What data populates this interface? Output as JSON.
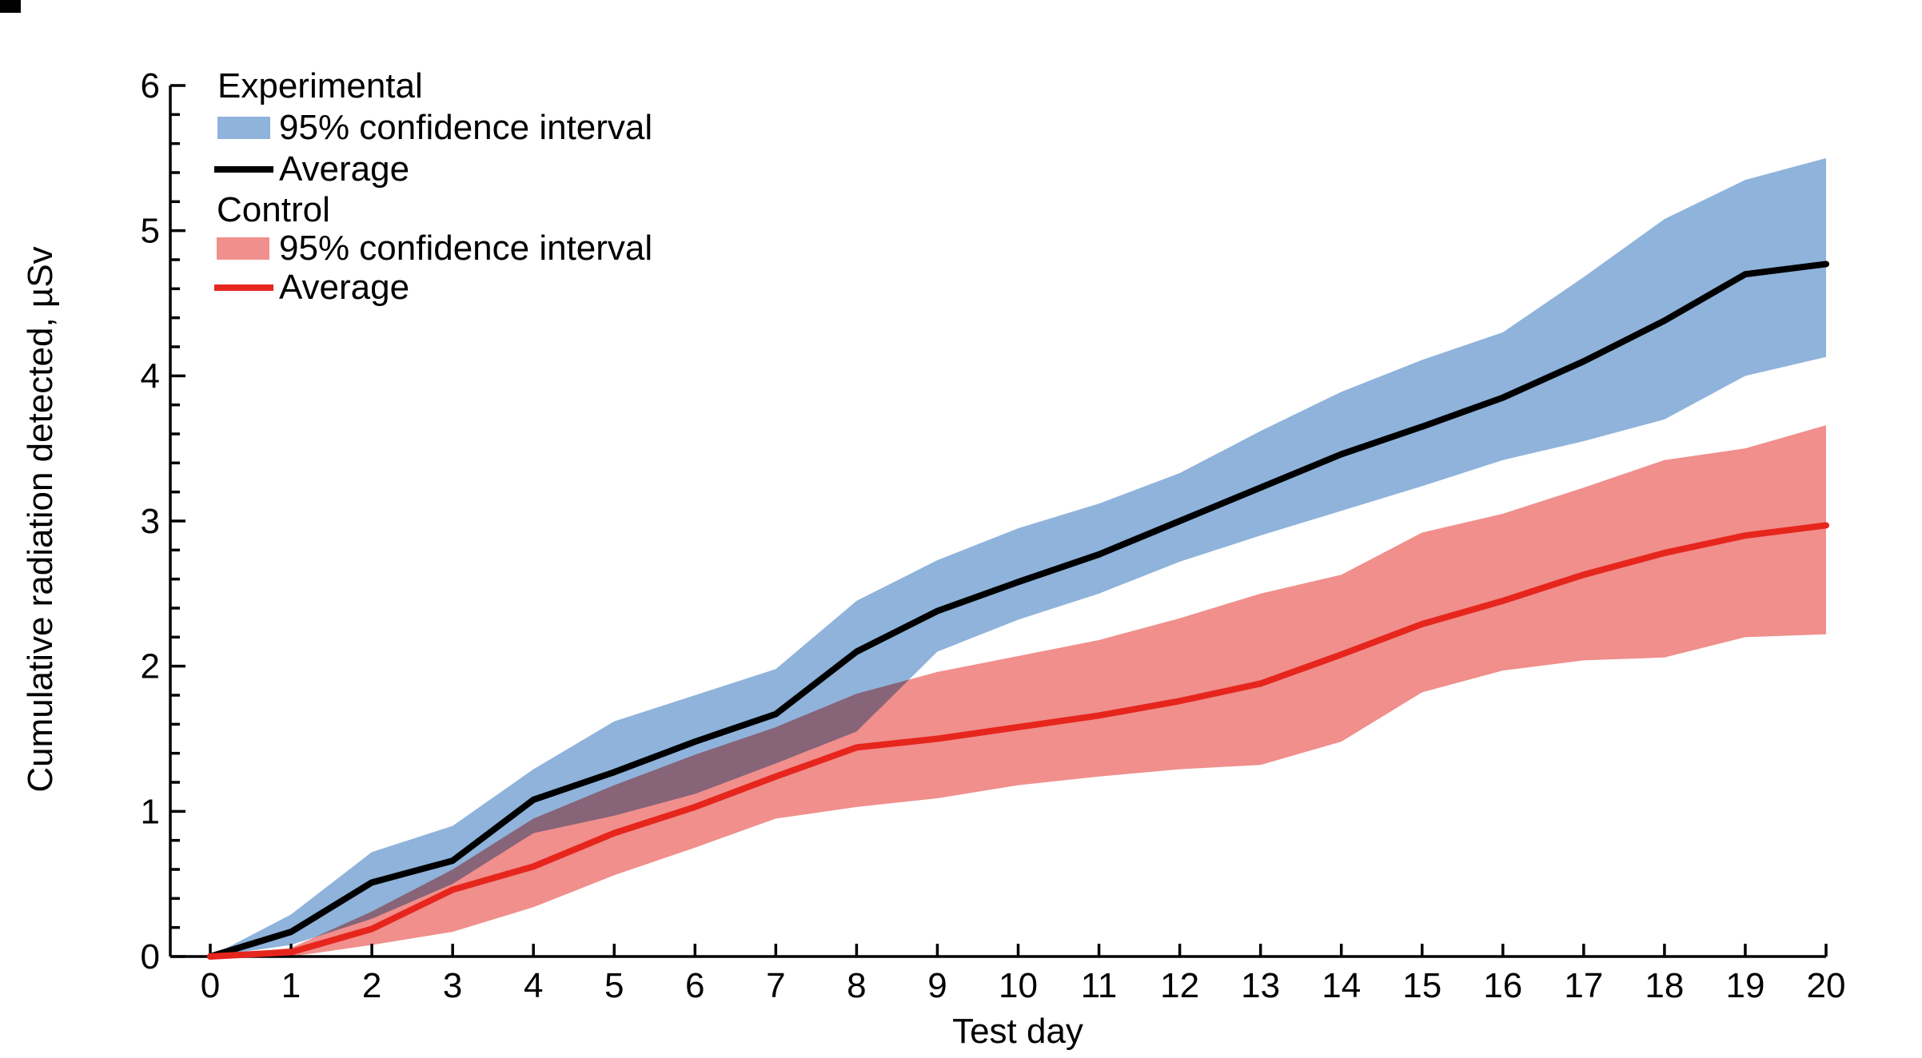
{
  "legend": {
    "experimental_header": "Experimental",
    "experimental_ci_label": "95% confidence interval",
    "experimental_avg_label": "Average",
    "control_header": "Control",
    "control_ci_label": "95% confidence interval",
    "control_avg_label": "Average"
  },
  "colors": {
    "experimental_band": "#8FB3DB",
    "experimental_line": "#000000",
    "control_band": "#F08F8C",
    "control_line": "#E6261D",
    "axis": "#000000"
  },
  "chart_data": {
    "type": "line",
    "subtype": "averages-with-95ci-bands",
    "x_label": "Test day",
    "y_label": "Cumulative radiation detected, µSv",
    "xlim": [
      0,
      20
    ],
    "ylim": [
      0,
      6
    ],
    "x_ticks": [
      0,
      1,
      2,
      3,
      4,
      5,
      6,
      7,
      8,
      9,
      10,
      11,
      12,
      13,
      14,
      15,
      16,
      17,
      18,
      19,
      20
    ],
    "y_ticks": [
      0,
      1,
      2,
      3,
      4,
      5,
      6
    ],
    "y_minor_tick_step": 0.2,
    "grid": "off",
    "legend_position": "top-left-inside",
    "x": [
      0,
      1,
      2,
      3,
      4,
      5,
      6,
      7,
      8,
      9,
      10,
      11,
      12,
      13,
      14,
      15,
      16,
      17,
      18,
      19,
      20
    ],
    "series": [
      {
        "name": "Experimental 95% confidence interval",
        "kind": "band",
        "color": "#8FB3DB",
        "upper": [
          0,
          0.29,
          0.72,
          0.9,
          1.29,
          1.62,
          1.8,
          1.98,
          2.45,
          2.73,
          2.95,
          3.12,
          3.33,
          3.62,
          3.89,
          4.11,
          4.3,
          4.68,
          5.08,
          5.35,
          5.5
        ],
        "lower": [
          0,
          0.08,
          0.26,
          0.5,
          0.85,
          0.97,
          1.12,
          1.33,
          1.55,
          2.1,
          2.32,
          2.5,
          2.72,
          2.9,
          3.07,
          3.24,
          3.42,
          3.55,
          3.7,
          4.0,
          4.13
        ]
      },
      {
        "name": "Control 95% confidence interval",
        "kind": "band",
        "color": "#F08F8C",
        "blend": "multiply",
        "upper": [
          0,
          0.06,
          0.31,
          0.6,
          0.95,
          1.18,
          1.39,
          1.58,
          1.81,
          1.96,
          2.07,
          2.18,
          2.33,
          2.5,
          2.63,
          2.92,
          3.05,
          3.23,
          3.42,
          3.5,
          3.66
        ],
        "lower": [
          0,
          0.0,
          0.08,
          0.17,
          0.34,
          0.56,
          0.75,
          0.95,
          1.03,
          1.09,
          1.18,
          1.24,
          1.29,
          1.32,
          1.48,
          1.82,
          1.97,
          2.04,
          2.06,
          2.2,
          2.22
        ]
      },
      {
        "name": "Experimental average",
        "kind": "line",
        "color": "#000000",
        "values": [
          0,
          0.17,
          0.51,
          0.66,
          1.08,
          1.27,
          1.48,
          1.67,
          2.1,
          2.38,
          2.58,
          2.77,
          3.0,
          3.23,
          3.46,
          3.65,
          3.85,
          4.1,
          4.38,
          4.7,
          4.77
        ]
      },
      {
        "name": "Control average",
        "kind": "line",
        "color": "#E6261D",
        "values": [
          0,
          0.03,
          0.19,
          0.46,
          0.62,
          0.85,
          1.03,
          1.24,
          1.44,
          1.5,
          1.58,
          1.66,
          1.76,
          1.88,
          2.08,
          2.29,
          2.45,
          2.63,
          2.78,
          2.9,
          2.97
        ]
      }
    ]
  }
}
